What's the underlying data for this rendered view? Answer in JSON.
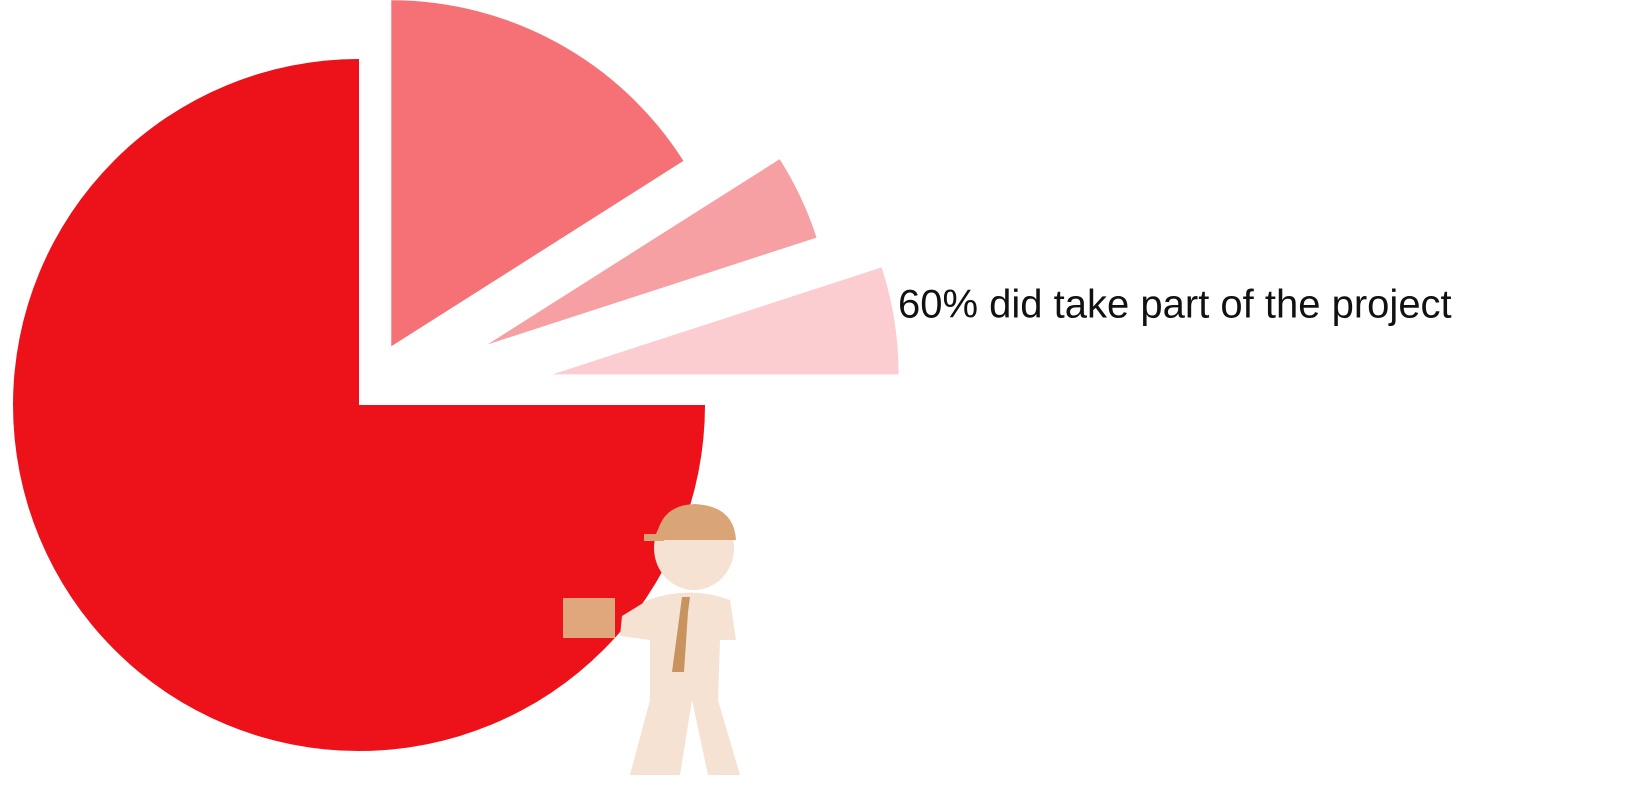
{
  "chart_data": {
    "type": "pie",
    "values": [
      16,
      4,
      5,
      75
    ],
    "colors": [
      "#f67176",
      "#f7a0a3",
      "#fccdd0",
      "#ed1119"
    ],
    "annotation": "60% did take part of the project"
  }
}
